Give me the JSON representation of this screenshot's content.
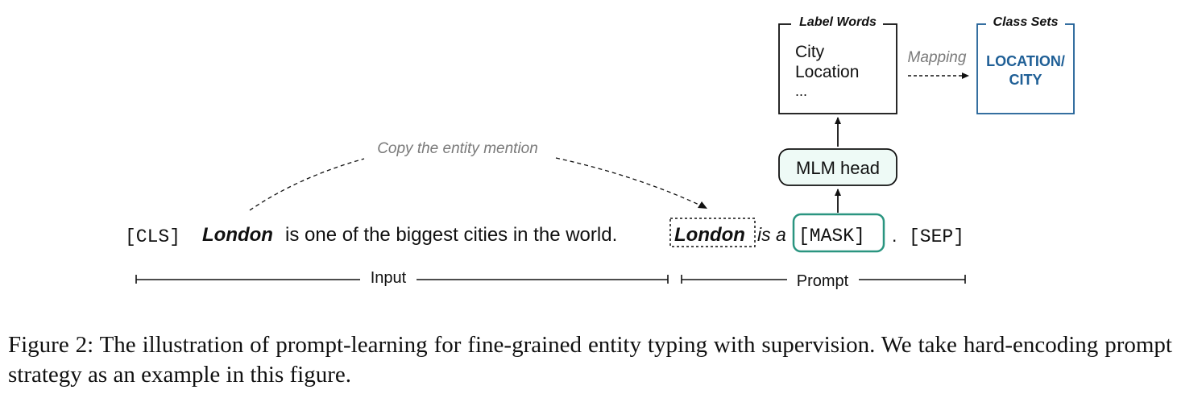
{
  "label_words": {
    "title": "Label Words",
    "items": [
      "City",
      "Location",
      "..."
    ]
  },
  "mapping_label": "Mapping",
  "class_sets": {
    "title": "Class Sets",
    "line1": "LOCATION/",
    "line2": "CITY"
  },
  "mlm_head": "MLM head",
  "copy_label": "Copy the entity mention",
  "sentence": {
    "cls": "[CLS]",
    "entity": "London",
    "rest": "is one of the biggest cities in the world.",
    "prompt_entity": "London",
    "prompt_text": "is a",
    "mask": "[MASK]",
    "period": ".",
    "sep": "[SEP]"
  },
  "spans": {
    "input": "Input",
    "prompt": "Prompt"
  },
  "caption": "Figure 2: The illustration of prompt-learning for fine-grained entity typing with supervision. We take hard-encoding prompt strategy as an example in this figure.",
  "colors": {
    "mask_border": "#2a9580",
    "mlm_fill": "#eefaf6",
    "class_set": "#1f5f96",
    "gray_text": "#7a7a7a"
  }
}
